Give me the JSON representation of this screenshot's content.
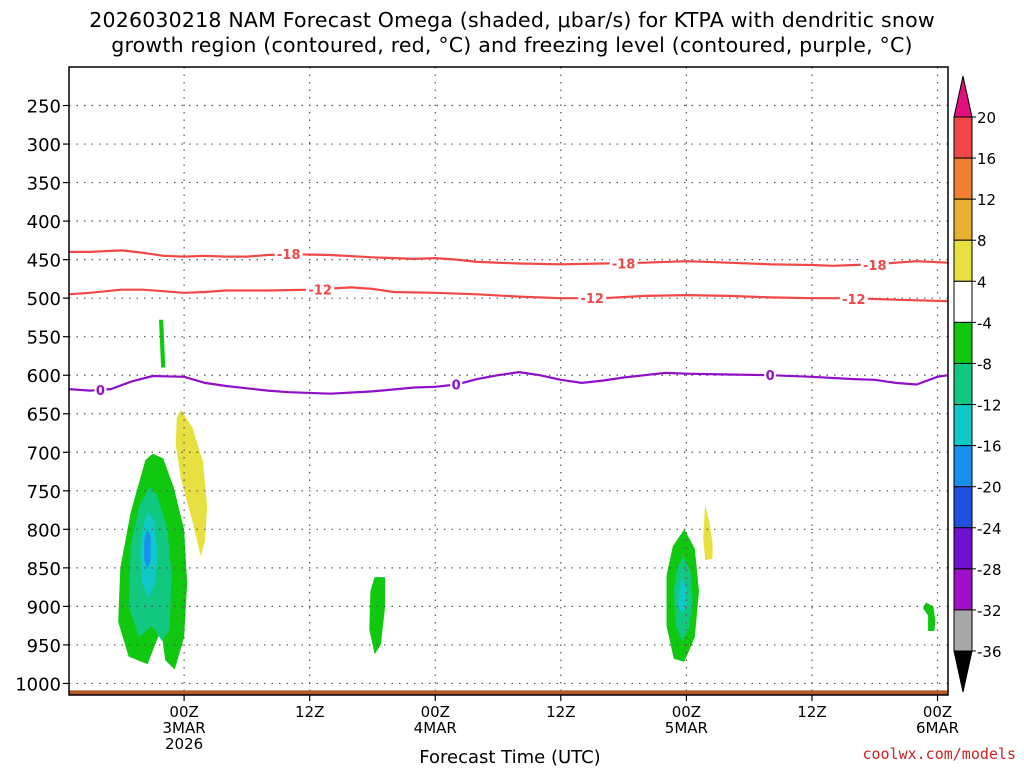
{
  "chart_data": {
    "type": "heatmap",
    "title_lines": [
      "2026030218 NAM Forecast Omega (shaded, μbar/s) for KTPA with dendritic snow",
      "growth region (contoured, red, °C) and freezing level (contoured, purple, °C)"
    ],
    "xlabel": "Forecast Time (UTC)",
    "ylabel": "",
    "credit": "coolwx.com/models",
    "x_range_hours": [
      -11,
      73
    ],
    "x_ticks": [
      {
        "h": 0,
        "lines": [
          "00Z",
          "3MAR",
          "2026"
        ]
      },
      {
        "h": 12,
        "lines": [
          "12Z"
        ]
      },
      {
        "h": 24,
        "lines": [
          "00Z",
          "4MAR"
        ]
      },
      {
        "h": 36,
        "lines": [
          "12Z"
        ]
      },
      {
        "h": 48,
        "lines": [
          "00Z",
          "5MAR"
        ]
      },
      {
        "h": 60,
        "lines": [
          "12Z"
        ]
      },
      {
        "h": 72,
        "lines": [
          "00Z",
          "6MAR"
        ]
      }
    ],
    "y_range_hpa": [
      200,
      1015
    ],
    "y_ticks": [
      250,
      300,
      350,
      400,
      450,
      500,
      550,
      600,
      650,
      700,
      750,
      800,
      850,
      900,
      950,
      1000
    ],
    "colorbar": {
      "labels": [
        "20",
        "16",
        "12",
        "8",
        "4",
        "-4",
        "-8",
        "-12",
        "-16",
        "-20",
        "-24",
        "-28",
        "-32",
        "-36"
      ],
      "bands": [
        {
          "range": "16 to 20",
          "color": "#f04848"
        },
        {
          "range": "12 to 16",
          "color": "#f08030"
        },
        {
          "range": "8 to 12",
          "color": "#e8b030"
        },
        {
          "range": "4 to 8",
          "color": "#e8e040"
        },
        {
          "range": "-4 to 4",
          "color": "#ffffff"
        },
        {
          "range": "-8 to -4",
          "color": "#10c810"
        },
        {
          "range": "-12 to -8",
          "color": "#10c880"
        },
        {
          "range": "-16 to -12",
          "color": "#10c8c8"
        },
        {
          "range": "-20 to -16",
          "color": "#1890f0"
        },
        {
          "range": "-24 to -20",
          "color": "#2050e0"
        },
        {
          "range": "-28 to -24",
          "color": "#7010d0"
        },
        {
          "range": "-32 to -28",
          "color": "#a010c8"
        },
        {
          "range": "-36 to -32",
          "color": "#a8a8a8"
        }
      ],
      "top_arrow_color": "#e0107c",
      "bottom_arrow_color": "#000000"
    },
    "contours": [
      {
        "name": "-18C isotherm",
        "label": "-18",
        "color": "#f04848",
        "points": [
          [
            -11,
            440
          ],
          [
            -9,
            440
          ],
          [
            -6,
            438
          ],
          [
            -4,
            441
          ],
          [
            -2,
            445
          ],
          [
            0,
            446
          ],
          [
            2,
            445
          ],
          [
            4,
            446
          ],
          [
            6,
            446
          ],
          [
            8,
            444
          ],
          [
            10,
            443
          ],
          [
            14,
            444
          ],
          [
            18,
            447
          ],
          [
            22,
            449
          ],
          [
            24,
            448
          ],
          [
            26,
            450
          ],
          [
            28,
            453
          ],
          [
            32,
            455
          ],
          [
            36,
            456
          ],
          [
            40,
            455
          ],
          [
            44,
            454
          ],
          [
            48,
            452
          ],
          [
            52,
            454
          ],
          [
            56,
            456
          ],
          [
            60,
            457
          ],
          [
            62,
            458
          ],
          [
            64,
            457
          ],
          [
            66,
            456
          ],
          [
            68,
            454
          ],
          [
            70,
            452
          ],
          [
            73,
            454
          ]
        ],
        "label_positions": [
          [
            10,
            443
          ],
          [
            42,
            455
          ],
          [
            66,
            457
          ]
        ]
      },
      {
        "name": "-12C isotherm",
        "label": "-12",
        "color": "#f04848",
        "points": [
          [
            -11,
            495
          ],
          [
            -9,
            493
          ],
          [
            -6,
            489
          ],
          [
            -4,
            489
          ],
          [
            -2,
            491
          ],
          [
            0,
            493
          ],
          [
            2,
            492
          ],
          [
            4,
            490
          ],
          [
            8,
            490
          ],
          [
            12,
            489
          ],
          [
            16,
            486
          ],
          [
            18,
            488
          ],
          [
            20,
            492
          ],
          [
            24,
            493
          ],
          [
            28,
            495
          ],
          [
            32,
            498
          ],
          [
            36,
            500
          ],
          [
            40,
            500
          ],
          [
            44,
            497
          ],
          [
            48,
            496
          ],
          [
            52,
            497
          ],
          [
            56,
            499
          ],
          [
            60,
            500
          ],
          [
            64,
            500
          ],
          [
            68,
            502
          ],
          [
            73,
            504
          ]
        ],
        "label_positions": [
          [
            13,
            489
          ],
          [
            39,
            500
          ],
          [
            64,
            501
          ]
        ]
      },
      {
        "name": "0C freezing level",
        "label": "0",
        "color": "#9010c8",
        "points": [
          [
            -11,
            618
          ],
          [
            -9,
            620
          ],
          [
            -7,
            618
          ],
          [
            -5,
            608
          ],
          [
            -3,
            601
          ],
          [
            0,
            602
          ],
          [
            2,
            610
          ],
          [
            4,
            614
          ],
          [
            6,
            617
          ],
          [
            8,
            620
          ],
          [
            10,
            622
          ],
          [
            14,
            624
          ],
          [
            18,
            621
          ],
          [
            22,
            616
          ],
          [
            24,
            615
          ],
          [
            26,
            612
          ],
          [
            28,
            605
          ],
          [
            30,
            600
          ],
          [
            32,
            596
          ],
          [
            34,
            600
          ],
          [
            36,
            606
          ],
          [
            38,
            610
          ],
          [
            40,
            607
          ],
          [
            42,
            603
          ],
          [
            44,
            600
          ],
          [
            46,
            597
          ],
          [
            48,
            598
          ],
          [
            52,
            599
          ],
          [
            56,
            600
          ],
          [
            60,
            602
          ],
          [
            64,
            605
          ],
          [
            66,
            606
          ],
          [
            68,
            610
          ],
          [
            70,
            612
          ],
          [
            72,
            602
          ],
          [
            73,
            600
          ]
        ],
        "label_positions": [
          [
            -8,
            619
          ],
          [
            26,
            612
          ],
          [
            56,
            600
          ]
        ]
      }
    ],
    "omega_regions": [
      {
        "color": "#10c810",
        "value_range": "-8 to -4",
        "polygon": [
          [
            -2.4,
            528
          ],
          [
            -2.0,
            528
          ],
          [
            -1.8,
            590
          ],
          [
            -2.2,
            590
          ]
        ]
      },
      {
        "color": "#10c810",
        "value_range": "-8 to -4",
        "polygon": [
          [
            -2,
            708
          ],
          [
            -1,
            745
          ],
          [
            0,
            800
          ],
          [
            0.3,
            870
          ],
          [
            0,
            940
          ],
          [
            -0.9,
            982
          ],
          [
            -1.8,
            970
          ],
          [
            -2.2,
            930
          ],
          [
            -3.5,
            975
          ],
          [
            -5.3,
            965
          ],
          [
            -6.3,
            920
          ],
          [
            -6.1,
            850
          ],
          [
            -5.1,
            778
          ],
          [
            -3.7,
            710
          ],
          [
            -3,
            702
          ]
        ]
      },
      {
        "color": "#10c880",
        "value_range": "-12 to -8",
        "polygon": [
          [
            -3.3,
            745
          ],
          [
            -2.6,
            755
          ],
          [
            -1.6,
            800
          ],
          [
            -1.2,
            860
          ],
          [
            -1.4,
            930
          ],
          [
            -2.1,
            945
          ],
          [
            -3.1,
            925
          ],
          [
            -4.3,
            940
          ],
          [
            -5.3,
            900
          ],
          [
            -5.1,
            820
          ],
          [
            -4.3,
            770
          ]
        ]
      },
      {
        "color": "#10c8c8",
        "value_range": "-16 to -12",
        "polygon": [
          [
            -3.4,
            778
          ],
          [
            -2.9,
            790
          ],
          [
            -2.5,
            830
          ],
          [
            -2.8,
            870
          ],
          [
            -3.4,
            890
          ],
          [
            -4.0,
            870
          ],
          [
            -4.2,
            830
          ],
          [
            -3.9,
            795
          ]
        ]
      },
      {
        "color": "#1890f0",
        "value_range": "-20 to -16",
        "polygon": [
          [
            -3.5,
            800
          ],
          [
            -3.2,
            810
          ],
          [
            -3.2,
            840
          ],
          [
            -3.5,
            852
          ],
          [
            -3.8,
            840
          ],
          [
            -3.8,
            812
          ]
        ]
      },
      {
        "color": "#e8e040",
        "value_range": "4 to 8",
        "polygon": [
          [
            -0.3,
            645
          ],
          [
            0.8,
            668
          ],
          [
            1.8,
            712
          ],
          [
            2.2,
            770
          ],
          [
            2.0,
            815
          ],
          [
            1.6,
            835
          ],
          [
            0.8,
            790
          ],
          [
            -0.3,
            735
          ],
          [
            -0.8,
            690
          ],
          [
            -0.7,
            655
          ]
        ]
      },
      {
        "color": "#10c810",
        "value_range": "-8 to -4",
        "polygon": [
          [
            18.2,
            862
          ],
          [
            19.2,
            862
          ],
          [
            19.2,
            902
          ],
          [
            18.8,
            950
          ],
          [
            18.2,
            962
          ],
          [
            17.7,
            930
          ],
          [
            17.8,
            880
          ]
        ]
      },
      {
        "color": "#10c810",
        "value_range": "-8 to -4",
        "polygon": [
          [
            47.8,
            800
          ],
          [
            48.8,
            825
          ],
          [
            49.2,
            880
          ],
          [
            48.8,
            940
          ],
          [
            47.8,
            972
          ],
          [
            46.8,
            968
          ],
          [
            46.1,
            925
          ],
          [
            46.1,
            860
          ],
          [
            46.7,
            822
          ]
        ]
      },
      {
        "color": "#10c880",
        "value_range": "-12 to -8",
        "polygon": [
          [
            47.7,
            835
          ],
          [
            48.4,
            855
          ],
          [
            48.6,
            895
          ],
          [
            48.2,
            930
          ],
          [
            47.6,
            945
          ],
          [
            47.0,
            925
          ],
          [
            46.8,
            880
          ],
          [
            47.1,
            850
          ]
        ]
      },
      {
        "color": "#10c8c8",
        "value_range": "-16 to -12",
        "polygon": [
          [
            47.6,
            862
          ],
          [
            48.0,
            875
          ],
          [
            48.0,
            900
          ],
          [
            47.6,
            908
          ],
          [
            47.2,
            898
          ],
          [
            47.3,
            875
          ]
        ]
      },
      {
        "color": "#e8e040",
        "value_range": "4 to 8",
        "polygon": [
          [
            49.8,
            768
          ],
          [
            50.2,
            790
          ],
          [
            50.5,
            818
          ],
          [
            50.5,
            838
          ],
          [
            49.8,
            840
          ],
          [
            49.6,
            810
          ]
        ]
      },
      {
        "color": "#10c810",
        "value_range": "-8 to -4",
        "polygon": [
          [
            70.9,
            895
          ],
          [
            71.6,
            900
          ],
          [
            71.8,
            918
          ],
          [
            71.7,
            932
          ],
          [
            71.1,
            932
          ],
          [
            71.1,
            912
          ],
          [
            70.6,
            902
          ]
        ]
      }
    ],
    "ground_color": "#b45a2a",
    "ground_top_hpa": 1009
  }
}
